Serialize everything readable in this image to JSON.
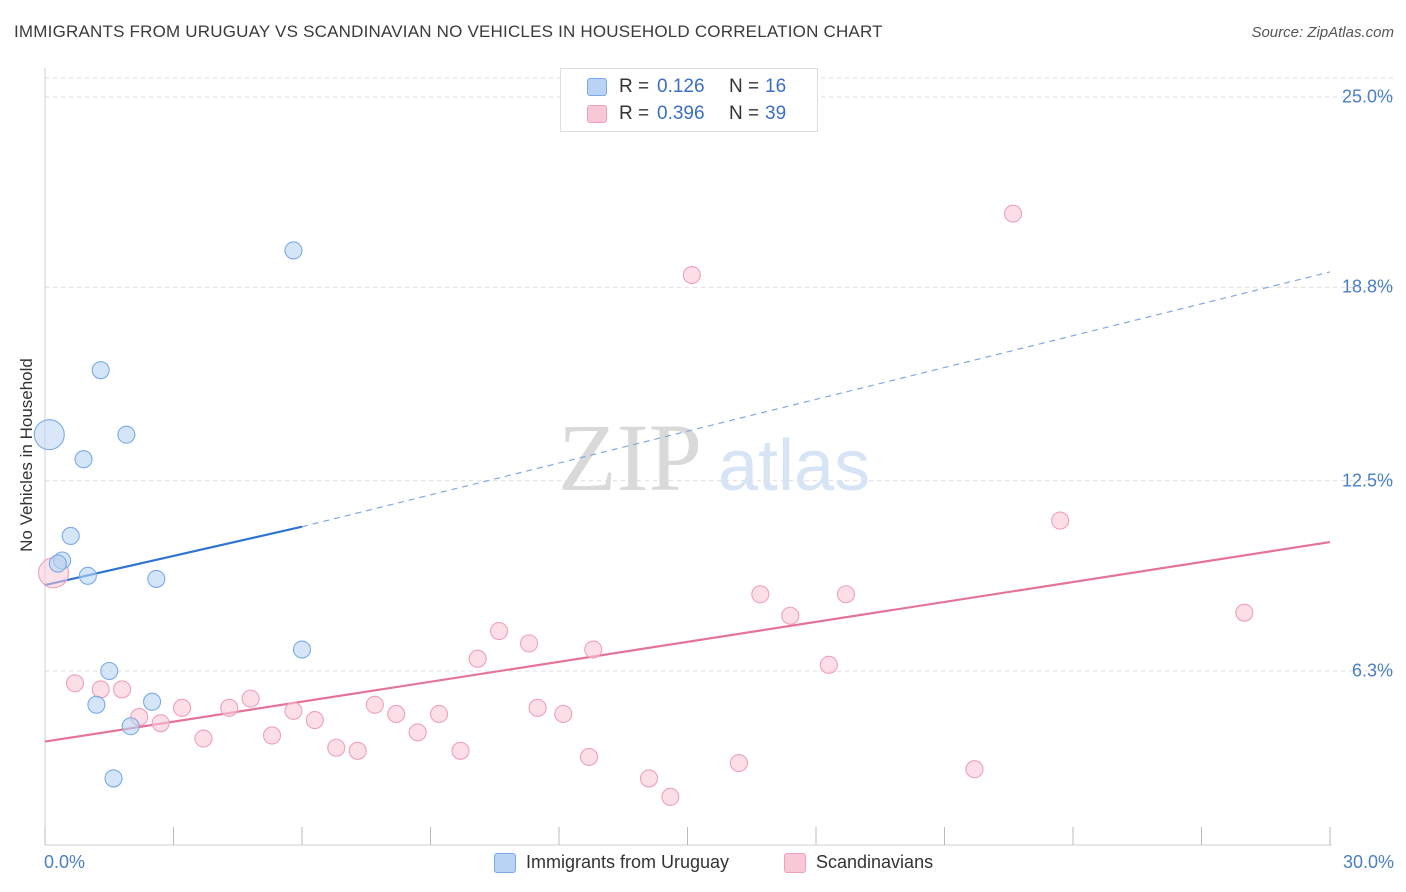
{
  "title": "IMMIGRANTS FROM URUGUAY VS SCANDINAVIAN NO VEHICLES IN HOUSEHOLD CORRELATION CHART",
  "source": "Source: ZipAtlas.com",
  "watermark": {
    "zip": "ZIP",
    "atlas": "atlas"
  },
  "legend": {
    "rows": [
      {
        "r_label": "R =",
        "r_value": "0.126",
        "n_label": "N =",
        "n_value": "16"
      },
      {
        "r_label": "R =",
        "r_value": "0.396",
        "n_label": "N =",
        "n_value": "39"
      }
    ]
  },
  "chart_data": {
    "type": "scatter",
    "title": "IMMIGRANTS FROM URUGUAY VS SCANDINAVIAN NO VEHICLES IN HOUSEHOLD CORRELATION CHART",
    "xlabel": "",
    "ylabel": "No Vehicles in Household",
    "xlim": [
      0,
      30
    ],
    "ylim": [
      0,
      25.8
    ],
    "x_tick_labels": [
      "0.0%",
      "30.0%"
    ],
    "y_ticks": [
      6.3,
      12.5,
      18.8,
      25.0
    ],
    "y_tick_labels": [
      "6.3%",
      "12.5%",
      "18.8%",
      "25.0%"
    ],
    "grid": "horizontal dashed",
    "legend_placement": "top-center and bottom",
    "series": [
      {
        "name": "Immigrants from Uruguay",
        "color": "#7aaae8",
        "fill": "#b9d3f4",
        "trend": {
          "x0": 0.0,
          "y0": 9.1,
          "x1": 6.0,
          "y1": 11.0,
          "dashed_to_x": 30.0,
          "dashed_to_y": 19.3
        },
        "points": [
          {
            "x": 0.1,
            "y": 14.0,
            "big": true
          },
          {
            "x": 1.3,
            "y": 16.1
          },
          {
            "x": 1.9,
            "y": 14.0
          },
          {
            "x": 0.9,
            "y": 13.2
          },
          {
            "x": 0.6,
            "y": 10.7
          },
          {
            "x": 0.4,
            "y": 9.9
          },
          {
            "x": 1.0,
            "y": 9.4
          },
          {
            "x": 2.6,
            "y": 9.3
          },
          {
            "x": 5.8,
            "y": 20.0
          },
          {
            "x": 6.0,
            "y": 7.0
          },
          {
            "x": 1.5,
            "y": 6.3
          },
          {
            "x": 1.2,
            "y": 5.2
          },
          {
            "x": 2.5,
            "y": 5.3
          },
          {
            "x": 2.0,
            "y": 4.5
          },
          {
            "x": 1.6,
            "y": 2.8
          },
          {
            "x": 0.3,
            "y": 9.8
          }
        ]
      },
      {
        "name": "Scandinavians",
        "color": "#f0a0b8",
        "fill": "#f8c8d6",
        "trend": {
          "x0": 0.0,
          "y0": 4.0,
          "x1": 30.0,
          "y1": 10.5
        },
        "points": [
          {
            "x": 0.2,
            "y": 9.5,
            "big": true
          },
          {
            "x": 0.7,
            "y": 5.9
          },
          {
            "x": 1.3,
            "y": 5.7
          },
          {
            "x": 1.8,
            "y": 5.7
          },
          {
            "x": 2.2,
            "y": 4.8
          },
          {
            "x": 2.7,
            "y": 4.6
          },
          {
            "x": 3.2,
            "y": 5.1
          },
          {
            "x": 3.7,
            "y": 4.1
          },
          {
            "x": 4.3,
            "y": 5.1
          },
          {
            "x": 4.8,
            "y": 5.4
          },
          {
            "x": 5.3,
            "y": 4.2
          },
          {
            "x": 5.8,
            "y": 5.0
          },
          {
            "x": 6.3,
            "y": 4.7
          },
          {
            "x": 6.8,
            "y": 3.8
          },
          {
            "x": 7.3,
            "y": 3.7
          },
          {
            "x": 7.7,
            "y": 5.2
          },
          {
            "x": 8.2,
            "y": 4.9
          },
          {
            "x": 8.7,
            "y": 4.3
          },
          {
            "x": 9.2,
            "y": 4.9
          },
          {
            "x": 9.7,
            "y": 3.7
          },
          {
            "x": 10.1,
            "y": 6.7
          },
          {
            "x": 10.6,
            "y": 7.6
          },
          {
            "x": 11.3,
            "y": 7.2
          },
          {
            "x": 11.5,
            "y": 5.1
          },
          {
            "x": 12.1,
            "y": 4.9
          },
          {
            "x": 12.7,
            "y": 3.5
          },
          {
            "x": 12.8,
            "y": 7.0
          },
          {
            "x": 14.1,
            "y": 2.8
          },
          {
            "x": 14.6,
            "y": 2.2
          },
          {
            "x": 15.1,
            "y": 19.2
          },
          {
            "x": 16.2,
            "y": 3.3
          },
          {
            "x": 16.7,
            "y": 8.8
          },
          {
            "x": 17.4,
            "y": 8.1
          },
          {
            "x": 18.3,
            "y": 6.5
          },
          {
            "x": 18.7,
            "y": 8.8
          },
          {
            "x": 21.7,
            "y": 3.1
          },
          {
            "x": 22.6,
            "y": 21.2
          },
          {
            "x": 23.7,
            "y": 11.2
          },
          {
            "x": 28.0,
            "y": 8.2
          }
        ]
      }
    ]
  },
  "bottom_legend": [
    "Immigrants from Uruguay",
    "Scandinavians"
  ]
}
